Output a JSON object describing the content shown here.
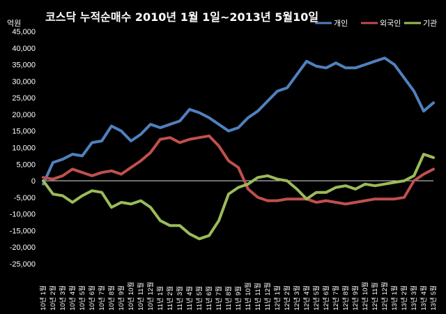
{
  "chart_data": {
    "type": "line",
    "title": "코스닥 누적순매수 2010년 1월 1일~2013년 5월10일",
    "ylabel": "억원",
    "ylim": [
      -25000,
      45000
    ],
    "y_ticks": [
      -25000,
      -20000,
      -15000,
      -10000,
      -5000,
      0,
      5000,
      10000,
      15000,
      20000,
      25000,
      30000,
      35000,
      40000,
      45000
    ],
    "y_tick_labels": [
      "-25,000",
      "-20,000",
      "-15,000",
      "-10,000",
      "-5,000",
      "0",
      "5,000",
      "10,000",
      "15,000",
      "20,000",
      "25,000",
      "30,000",
      "35,000",
      "40,000",
      "45,000"
    ],
    "x_tick_labels": [
      "10년 1월",
      "10년 2월",
      "10년 3월",
      "10년 4월",
      "10년 5월",
      "10년 6월",
      "10년 7월",
      "10년 8월",
      "10년 9월",
      "10년 10월",
      "10년 11월",
      "10년 12월",
      "11년 1월",
      "11년 2월",
      "11년 3월",
      "11년 4월",
      "11년 5월",
      "11년 6월",
      "11년 7월",
      "11년 8월",
      "11년 9월",
      "11년 10월",
      "11년 11월",
      "11년 12월",
      "12년 1월",
      "12년 2월",
      "12년 3월",
      "12년 4월",
      "12년 5월",
      "12년 6월",
      "12년 7월",
      "12년 8월",
      "12년 9월",
      "12년 10월",
      "12년 11월",
      "12년 12월",
      "13년 1월",
      "13년 2월",
      "13년 3월",
      "13년 4월",
      "13년 5월"
    ],
    "grid": false,
    "legend_position": "top-right",
    "series": [
      {
        "name": "개인",
        "color": "#4f81bd",
        "values": [
          -1000,
          5500,
          6500,
          8000,
          7500,
          11500,
          12000,
          16500,
          15000,
          12000,
          14000,
          17000,
          16000,
          17000,
          18000,
          21500,
          20500,
          19000,
          17000,
          15000,
          16000,
          19000,
          21000,
          24000,
          27000,
          28000,
          32000,
          36000,
          34500,
          34000,
          35500,
          34000,
          34000,
          35000,
          36000,
          37000,
          35000,
          31000,
          27000,
          21000,
          23500
        ]
      },
      {
        "name": "외국인",
        "color": "#c0504d",
        "values": [
          1000,
          500,
          1500,
          3500,
          2500,
          1500,
          2500,
          3000,
          2000,
          4000,
          6000,
          8500,
          12500,
          13000,
          11500,
          12500,
          13000,
          13500,
          10500,
          6000,
          4000,
          -2500,
          -5000,
          -6000,
          -6000,
          -5500,
          -5500,
          -5500,
          -6500,
          -6000,
          -6500,
          -7000,
          -6500,
          -6000,
          -5500,
          -5500,
          -5500,
          -5000,
          0,
          2000,
          3500
        ]
      },
      {
        "name": "기관",
        "color": "#9bbb59",
        "values": [
          0,
          -4000,
          -4500,
          -6500,
          -4500,
          -3000,
          -3500,
          -8000,
          -6500,
          -7000,
          -6000,
          -8000,
          -12000,
          -13500,
          -13500,
          -16000,
          -17500,
          -16500,
          -12000,
          -4000,
          -2000,
          -1000,
          1000,
          1500,
          500,
          0,
          -2500,
          -5500,
          -3500,
          -3500,
          -2000,
          -1500,
          -2500,
          -1000,
          -1500,
          -1000,
          -500,
          0,
          1500,
          8000,
          7000
        ]
      }
    ]
  }
}
